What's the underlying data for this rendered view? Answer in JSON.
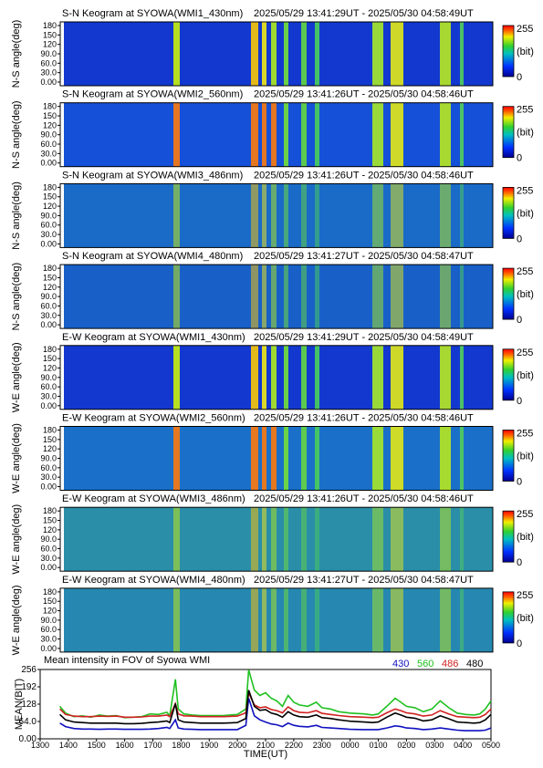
{
  "keograms": [
    {
      "title": "S-N Keogram at SYOWA(WMI1_430nm)",
      "time_range": "2025/05/29 13:41:29UT  -  2025/05/30 04:58:49UT",
      "ylabel": "N-S angle(deg)",
      "colormap_top": "255",
      "colormap_unit": "(bit)",
      "colormap_bottom": "0",
      "base": "#1238d0",
      "yticks": [
        "180",
        "150",
        "120",
        "90.0",
        "60.0",
        "30.0",
        "0.00"
      ]
    },
    {
      "title": "S-N Keogram at SYOWA(WMI2_560nm)",
      "time_range": "2025/05/29 13:41:26UT  -  2025/05/30 04:58:46UT",
      "ylabel": "N-S angle(deg)",
      "colormap_top": "255",
      "colormap_unit": "(bit)",
      "colormap_bottom": "0",
      "base": "#1450d8",
      "yticks": [
        "180",
        "150",
        "120",
        "90.0",
        "60.0",
        "30.0",
        "0.00"
      ]
    },
    {
      "title": "S-N Keogram at SYOWA(WMI3_486nm)",
      "time_range": "2025/05/29 13:41:26UT  -  2025/05/30 04:58:46UT",
      "ylabel": "N-S angle(deg)",
      "colormap_top": "255",
      "colormap_unit": "(bit)",
      "colormap_bottom": "0",
      "base": "#1a6ac8",
      "yticks": [
        "180",
        "150",
        "120",
        "90.0",
        "60.0",
        "30.0",
        "0.00"
      ]
    },
    {
      "title": "S-N Keogram at SYOWA(WMI4_480nm)",
      "time_range": "2025/05/29 13:41:27UT  -  2025/05/30 04:58:47UT",
      "ylabel": "N-S angle(deg)",
      "colormap_top": "255",
      "colormap_unit": "(bit)",
      "colormap_bottom": "0",
      "base": "#1860c8",
      "yticks": [
        "180",
        "150",
        "120",
        "90.0",
        "60.0",
        "30.0",
        "0.00"
      ]
    },
    {
      "title": "E-W Keogram at SYOWA(WMI1_430nm)",
      "time_range": "2025/05/29 13:41:29UT  -  2025/05/30 04:58:49UT",
      "ylabel": "W-E angle(deg)",
      "colormap_top": "255",
      "colormap_unit": "(bit)",
      "colormap_bottom": "0",
      "base": "#1238d0",
      "yticks": [
        "180",
        "150",
        "120",
        "90.0",
        "60.0",
        "30.0",
        "0.00"
      ]
    },
    {
      "title": "E-W Keogram at SYOWA(WMI2_560nm)",
      "time_range": "2025/05/29 13:41:26UT  -  2025/05/30 04:58:46UT",
      "ylabel": "W-E angle(deg)",
      "colormap_top": "255",
      "colormap_unit": "(bit)",
      "colormap_bottom": "0",
      "base": "#1a70c8",
      "yticks": [
        "180",
        "150",
        "120",
        "90.0",
        "60.0",
        "30.0",
        "0.00"
      ]
    },
    {
      "title": "E-W Keogram at SYOWA(WMI3_486nm)",
      "time_range": "2025/05/29 13:41:26UT  -  2025/05/30 04:58:46UT",
      "ylabel": "W-E angle(deg)",
      "colormap_top": "255",
      "colormap_unit": "(bit)",
      "colormap_bottom": "0",
      "base": "#2a8ea8",
      "yticks": [
        "180",
        "150",
        "120",
        "90.0",
        "60.0",
        "30.0",
        "0.00"
      ]
    },
    {
      "title": "E-W Keogram at SYOWA(WMI4_480nm)",
      "time_range": "2025/05/29 13:41:27UT  -  2025/05/30 04:58:47UT",
      "ylabel": "W-E angle(deg)",
      "colormap_top": "255",
      "colormap_unit": "(bit)",
      "colormap_bottom": "0",
      "base": "#2688b0",
      "yticks": [
        "180",
        "150",
        "120",
        "90.0",
        "60.0",
        "30.0",
        "0.00"
      ]
    }
  ],
  "chart_data": {
    "type": "line",
    "title": "Mean intensity in FOV of Syowa WMI",
    "xlabel": "TIME(UT)",
    "ylabel": "MEAN(BIT)",
    "x_ticks": [
      "1300",
      "1400",
      "1500",
      "1600",
      "1700",
      "1800",
      "1900",
      "2000",
      "2100",
      "2200",
      "2300",
      "0000",
      "0100",
      "0200",
      "0300",
      "0400",
      "0500"
    ],
    "y_ticks": [
      "256",
      "192",
      "128",
      "64.0",
      "0.00"
    ],
    "y_tick_values": [
      256,
      192,
      128,
      64,
      0
    ],
    "ylim": [
      0,
      256
    ],
    "x_hours": [
      13.7,
      13.9,
      14.2,
      14.5,
      14.8,
      15.1,
      15.4,
      15.7,
      16.0,
      16.3,
      16.6,
      16.9,
      17.2,
      17.5,
      17.6,
      17.8,
      17.9,
      18.1,
      18.4,
      18.7,
      19.0,
      19.5,
      20.0,
      20.3,
      20.4,
      20.6,
      20.8,
      21.0,
      21.2,
      21.4,
      21.6,
      21.8,
      22.0,
      22.2,
      22.5,
      22.8,
      23.0,
      23.3,
      23.6,
      24.0,
      24.5,
      24.8,
      25.0,
      25.3,
      25.6,
      25.8,
      26.0,
      26.3,
      26.6,
      26.9,
      27.2,
      27.5,
      27.8,
      28.1,
      28.4,
      28.6,
      28.8,
      29.0
    ],
    "x_hours_note": "hours UT from 13:00 on 2025/05/29; values above 24 denote next-day 00:00-05:00",
    "series": [
      {
        "name": "430",
        "color": "#1010c0",
        "values": [
          58,
          45,
          38,
          36,
          36,
          35,
          36,
          36,
          35,
          35,
          35,
          36,
          38,
          42,
          38,
          70,
          40,
          36,
          35,
          34,
          34,
          34,
          34,
          50,
          150,
          85,
          70,
          62,
          55,
          52,
          45,
          58,
          50,
          46,
          44,
          50,
          42,
          40,
          38,
          35,
          34,
          34,
          34,
          40,
          48,
          45,
          40,
          38,
          34,
          36,
          40,
          36,
          32,
          30,
          30,
          30,
          32,
          40
        ]
      },
      {
        "name": "560",
        "color": "#20c020",
        "values": [
          120,
          95,
          82,
          85,
          80,
          88,
          84,
          86,
          78,
          80,
          82,
          92,
          90,
          98,
          85,
          220,
          110,
          92,
          88,
          86,
          86,
          86,
          90,
          110,
          255,
          180,
          160,
          170,
          150,
          140,
          120,
          160,
          135,
          125,
          120,
          135,
          115,
          110,
          100,
          95,
          92,
          88,
          92,
          120,
          150,
          135,
          120,
          115,
          100,
          110,
          140,
          115,
          95,
          90,
          88,
          92,
          110,
          140
        ]
      },
      {
        "name": "486",
        "color": "#d02020",
        "values": [
          110,
          90,
          84,
          82,
          82,
          84,
          83,
          84,
          80,
          80,
          81,
          84,
          84,
          88,
          82,
          130,
          92,
          85,
          84,
          82,
          82,
          82,
          84,
          96,
          170,
          125,
          115,
          118,
          108,
          104,
          96,
          118,
          104,
          98,
          96,
          104,
          94,
          90,
          86,
          82,
          80,
          78,
          80,
          96,
          110,
          104,
          96,
          92,
          84,
          88,
          104,
          92,
          82,
          80,
          78,
          80,
          90,
          110
        ]
      },
      {
        "name": "480",
        "color": "#000000",
        "values": [
          90,
          70,
          62,
          60,
          58,
          58,
          58,
          58,
          56,
          56,
          57,
          60,
          62,
          66,
          60,
          130,
          70,
          62,
          60,
          58,
          58,
          58,
          60,
          75,
          180,
          120,
          105,
          108,
          95,
          90,
          80,
          100,
          88,
          82,
          80,
          88,
          78,
          75,
          70,
          65,
          62,
          60,
          62,
          80,
          95,
          88,
          80,
          76,
          66,
          70,
          85,
          74,
          62,
          60,
          58,
          60,
          70,
          90
        ]
      }
    ]
  }
}
